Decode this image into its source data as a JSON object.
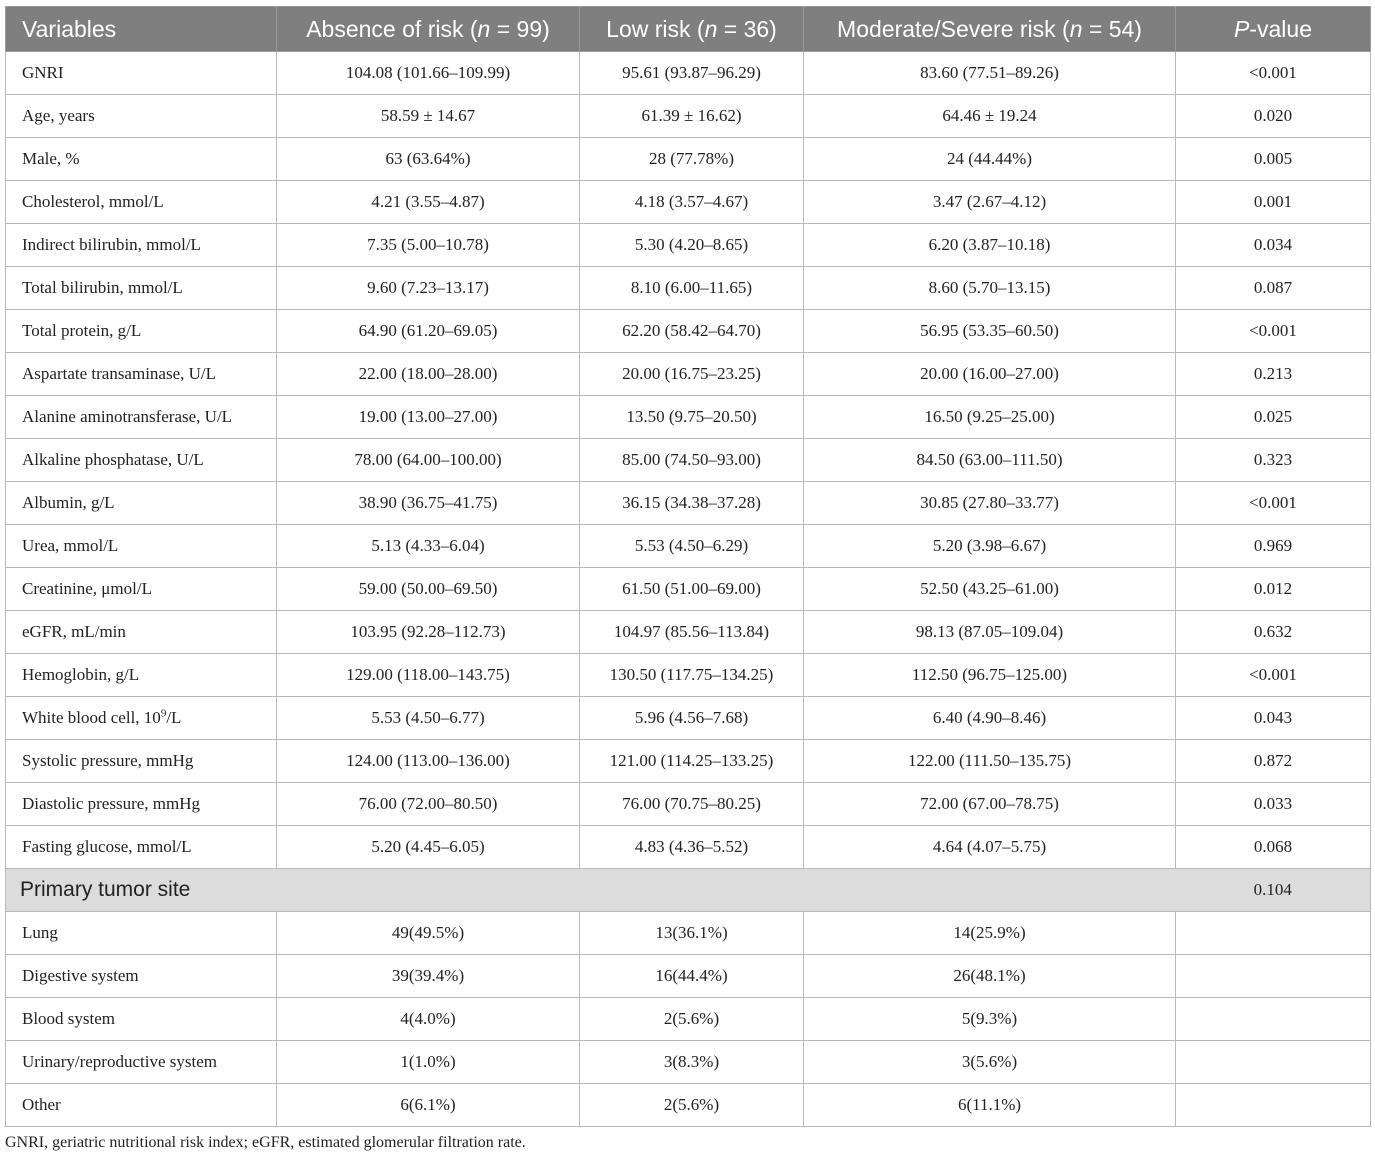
{
  "table": {
    "headers": {
      "variables": "Variables",
      "absence_pre": "Absence of risk (",
      "absence_n": "n",
      "absence_post": " = 99)",
      "low_pre": "Low risk (",
      "low_n": "n",
      "low_post": " = 36)",
      "moderate_pre": "Moderate/Severe risk (",
      "moderate_n": "n",
      "moderate_post": " = 54)",
      "p_italic": "P",
      "p_post": "-value"
    },
    "rows": [
      {
        "label": "GNRI",
        "absence": "104.08 (101.66–109.99)",
        "low": "95.61 (93.87–96.29)",
        "moderate": "83.60 (77.51–89.26)",
        "p": "<0.001"
      },
      {
        "label": "Age, years",
        "absence": "58.59 ± 14.67",
        "low": "61.39 ± 16.62)",
        "moderate": "64.46 ± 19.24",
        "p": "0.020"
      },
      {
        "label": "Male, %",
        "absence": "63 (63.64%)",
        "low": "28 (77.78%)",
        "moderate": "24 (44.44%)",
        "p": "0.005"
      },
      {
        "label": "Cholesterol, mmol/L",
        "absence": "4.21 (3.55–4.87)",
        "low": "4.18 (3.57–4.67)",
        "moderate": "3.47 (2.67–4.12)",
        "p": "0.001"
      },
      {
        "label": "Indirect bilirubin, mmol/L",
        "absence": "7.35 (5.00–10.78)",
        "low": "5.30 (4.20–8.65)",
        "moderate": "6.20 (3.87–10.18)",
        "p": "0.034"
      },
      {
        "label": "Total bilirubin, mmol/L",
        "absence": "9.60 (7.23–13.17)",
        "low": "8.10 (6.00–11.65)",
        "moderate": "8.60 (5.70–13.15)",
        "p": "0.087"
      },
      {
        "label": "Total protein, g/L",
        "absence": "64.90 (61.20–69.05)",
        "low": "62.20 (58.42–64.70)",
        "moderate": "56.95 (53.35–60.50)",
        "p": "<0.001"
      },
      {
        "label": "Aspartate transaminase, U/L",
        "absence": "22.00 (18.00–28.00)",
        "low": "20.00 (16.75–23.25)",
        "moderate": "20.00 (16.00–27.00)",
        "p": "0.213"
      },
      {
        "label": "Alanine aminotransferase, U/L",
        "absence": "19.00 (13.00–27.00)",
        "low": "13.50 (9.75–20.50)",
        "moderate": "16.50 (9.25–25.00)",
        "p": "0.025"
      },
      {
        "label": "Alkaline phosphatase, U/L",
        "absence": "78.00 (64.00–100.00)",
        "low": "85.00 (74.50–93.00)",
        "moderate": "84.50 (63.00–111.50)",
        "p": "0.323"
      },
      {
        "label": "Albumin, g/L",
        "absence": "38.90 (36.75–41.75)",
        "low": "36.15 (34.38–37.28)",
        "moderate": "30.85 (27.80–33.77)",
        "p": "<0.001"
      },
      {
        "label": "Urea, mmol/L",
        "absence": "5.13 (4.33–6.04)",
        "low": "5.53 (4.50–6.29)",
        "moderate": "5.20 (3.98–6.67)",
        "p": "0.969"
      },
      {
        "label": "Creatinine, μmol/L",
        "absence": "59.00 (50.00–69.50)",
        "low": "61.50 (51.00–69.00)",
        "moderate": "52.50 (43.25–61.00)",
        "p": "0.012"
      },
      {
        "label": "eGFR, mL/min",
        "absence": "103.95 (92.28–112.73)",
        "low": "104.97 (85.56–113.84)",
        "moderate": "98.13 (87.05–109.04)",
        "p": "0.632"
      },
      {
        "label": "Hemoglobin, g/L",
        "absence": "129.00 (118.00–143.75)",
        "low": "130.50 (117.75–134.25)",
        "moderate": "112.50 (96.75–125.00)",
        "p": "<0.001"
      },
      {
        "label": "White blood cell, 10",
        "label_sup": "9",
        "label_post": "/L",
        "absence": "5.53 (4.50–6.77)",
        "low": "5.96 (4.56–7.68)",
        "moderate": "6.40 (4.90–8.46)",
        "p": "0.043"
      },
      {
        "label": "Systolic pressure, mmHg",
        "absence": "124.00 (113.00–136.00)",
        "low": "121.00 (114.25–133.25)",
        "moderate": "122.00 (111.50–135.75)",
        "p": "0.872"
      },
      {
        "label": "Diastolic pressure, mmHg",
        "absence": "76.00 (72.00–80.50)",
        "low": "76.00 (70.75–80.25)",
        "moderate": "72.00 (67.00–78.75)",
        "p": "0.033"
      },
      {
        "label": "Fasting glucose, mmol/L",
        "absence": "5.20 (4.45–6.05)",
        "low": "4.83 (4.36–5.52)",
        "moderate": "4.64 (4.07–5.75)",
        "p": "0.068"
      }
    ],
    "section": {
      "label": "Primary tumor site",
      "p": "0.104"
    },
    "section_rows": [
      {
        "label": "Lung",
        "absence": "49(49.5%)",
        "low": "13(36.1%)",
        "moderate": "14(25.9%)"
      },
      {
        "label": "Digestive system",
        "absence": "39(39.4%)",
        "low": "16(44.4%)",
        "moderate": "26(48.1%)"
      },
      {
        "label": "Blood system",
        "absence": "4(4.0%)",
        "low": "2(5.6%)",
        "moderate": "5(9.3%)"
      },
      {
        "label": "Urinary/reproductive system",
        "absence": "1(1.0%)",
        "low": "3(8.3%)",
        "moderate": "3(5.6%)"
      },
      {
        "label": "Other",
        "absence": "6(6.1%)",
        "low": "2(5.6%)",
        "moderate": "6(11.1%)"
      }
    ]
  },
  "footnote": "GNRI, geriatric nutritional risk index; eGFR, estimated glomerular filtration rate.",
  "colors": {
    "header_bg": "#7f7f7f",
    "section_bg": "#dcdcdc",
    "border": "#b9b9b9"
  }
}
